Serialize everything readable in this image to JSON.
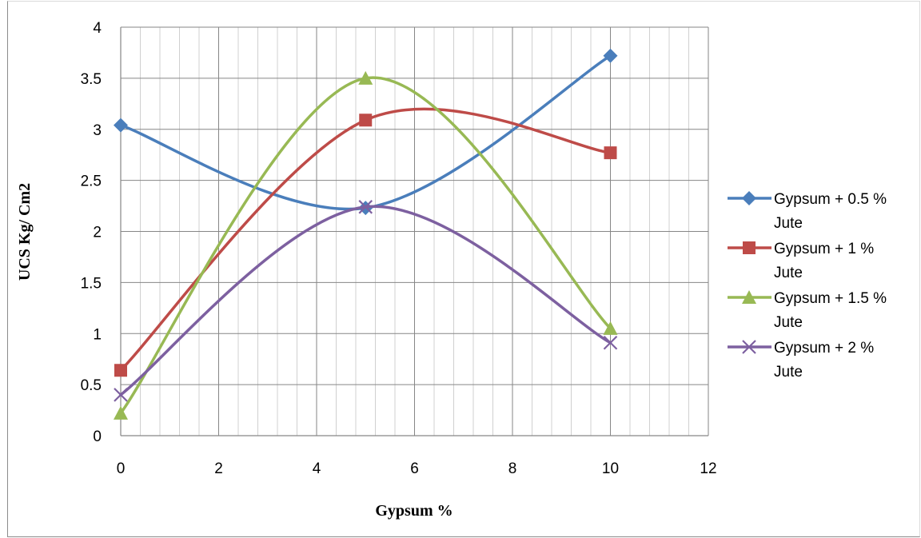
{
  "chart_data": {
    "type": "scatter",
    "xlabel": "Gypsum %",
    "ylabel": "UCS Kg/ Cm2",
    "xlim": [
      0,
      12
    ],
    "ylim": [
      0,
      4
    ],
    "x_ticks": [
      "0",
      "2",
      "4",
      "6",
      "8",
      "10",
      "12"
    ],
    "y_ticks": [
      "0",
      "0.5",
      "1",
      "1.5",
      "2",
      "2.5",
      "3",
      "3.5",
      "4"
    ],
    "x_major_step": 2,
    "x_minor_step": 0.4,
    "y_step": 0.5,
    "grid": true,
    "smooth_lines": true,
    "legend_position": "right",
    "series": [
      {
        "name": "Gypsum + 0.5 % Jute",
        "name_lines": [
          "Gypsum + 0.5 %",
          "Jute"
        ],
        "color": "#4a7ebb",
        "marker": "diamond",
        "x": [
          0,
          5,
          10
        ],
        "y": [
          3.04,
          2.23,
          3.72
        ]
      },
      {
        "name": "Gypsum + 1 % Jute",
        "name_lines": [
          "Gypsum + 1 %",
          "Jute"
        ],
        "color": "#be4b48",
        "marker": "square",
        "x": [
          0,
          5,
          10
        ],
        "y": [
          0.64,
          3.09,
          2.77
        ]
      },
      {
        "name": "Gypsum + 1.5 % Jute",
        "name_lines": [
          "Gypsum + 1.5 %",
          "Jute"
        ],
        "color": "#98b954",
        "marker": "triangle",
        "x": [
          0,
          5,
          10
        ],
        "y": [
          0.22,
          3.5,
          1.05
        ]
      },
      {
        "name": "Gypsum + 2 % Jute",
        "name_lines": [
          "Gypsum + 2 %",
          "Jute"
        ],
        "color": "#7d60a0",
        "marker": "x",
        "x": [
          0,
          5,
          10
        ],
        "y": [
          0.4,
          2.24,
          0.91
        ]
      }
    ]
  }
}
